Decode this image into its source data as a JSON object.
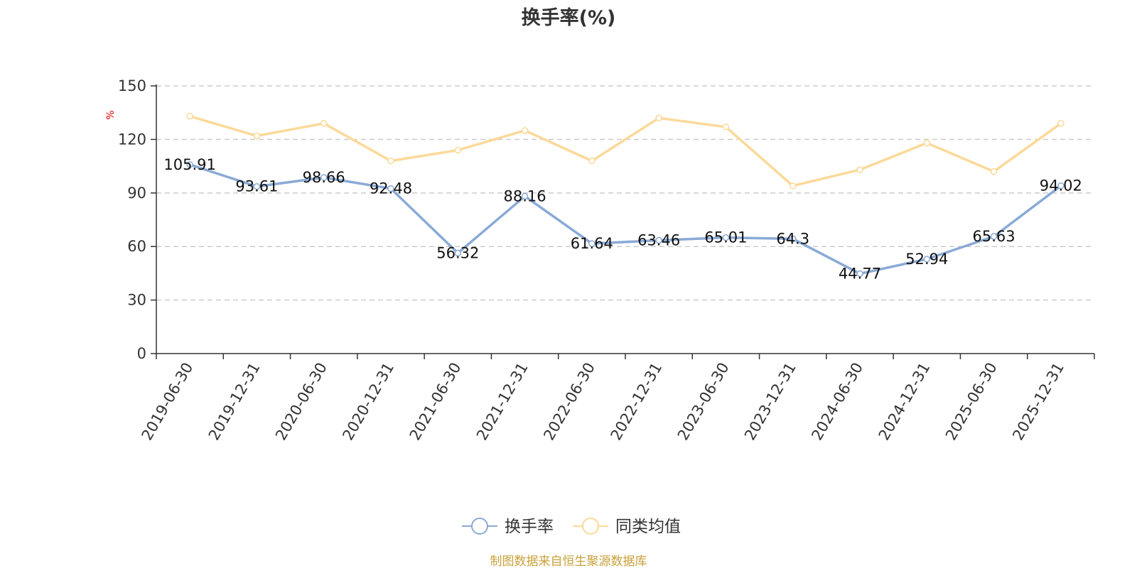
{
  "chart_data": {
    "type": "line",
    "title": "换手率(%)",
    "ylabel": "%",
    "ylim": [
      0,
      150
    ],
    "yticks": [
      0,
      30,
      60,
      90,
      120,
      150
    ],
    "grid": true,
    "legend_position": "bottom",
    "categories": [
      "2019-06-30",
      "2019-12-31",
      "2020-06-30",
      "2020-12-31",
      "2021-06-30",
      "2021-12-31",
      "2022-06-30",
      "2022-12-31",
      "2023-06-30",
      "2023-12-31",
      "2024-06-30",
      "2024-12-31",
      "2025-06-30",
      "2025-12-31"
    ],
    "series": [
      {
        "name": "换手率",
        "color": "#8aaad6",
        "values": [
          105.91,
          93.61,
          98.66,
          92.48,
          56.32,
          88.16,
          61.64,
          63.46,
          65.01,
          64.3,
          44.77,
          52.94,
          65.63,
          94.02
        ],
        "data_labels": [
          "105.91",
          "93.61",
          "98.66",
          "92.48",
          "56.32",
          "88.16",
          "61.64",
          "63.46",
          "65.01",
          "64.3",
          "44.77",
          "52.94",
          "65.63",
          "94.02"
        ]
      },
      {
        "name": "同类均值",
        "color": "#fbd999",
        "values": [
          133,
          122,
          129,
          108,
          114,
          125,
          108,
          132,
          127,
          94,
          103,
          118,
          102,
          129
        ]
      }
    ]
  },
  "source_text": "制图数据来自恒生聚源数据库",
  "colors": {
    "axis": "#333333",
    "grid": "#cccccc",
    "unit": "#e60000",
    "source": "#c9a13a"
  }
}
